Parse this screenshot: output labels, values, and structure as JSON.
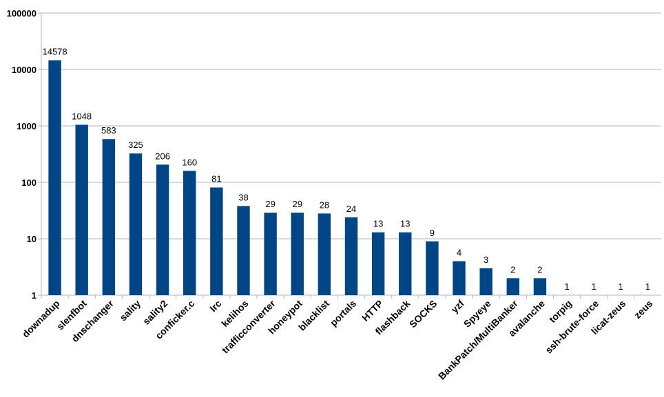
{
  "chart_data": {
    "type": "bar",
    "title": "",
    "xlabel": "",
    "ylabel": "",
    "yscale": "log",
    "ylim": [
      1,
      100000
    ],
    "yticks": [
      "1",
      "10",
      "100",
      "1000",
      "10000",
      "100000"
    ],
    "grid": true,
    "legend": "none",
    "bar_color": "#004586",
    "categories": [
      "downadup",
      "slenfbot",
      "dnschanger",
      "sality",
      "sality2",
      "conficker.c",
      "Irc",
      "kelihos",
      "trafficconverter",
      "honeypot",
      "blacklist",
      "portals",
      "HTTP",
      "flashback",
      "SOCKS",
      "yzf",
      "Spyeye",
      "BankPatch/MultiBanker",
      "avalanche",
      "torpig",
      "ssh-brute-force",
      "licat-zeus",
      "zeus"
    ],
    "values": [
      14578,
      1048,
      583,
      325,
      206,
      160,
      81,
      38,
      29,
      29,
      28,
      24,
      13,
      13,
      9,
      4,
      3,
      2,
      2,
      1,
      1,
      1,
      1
    ]
  }
}
